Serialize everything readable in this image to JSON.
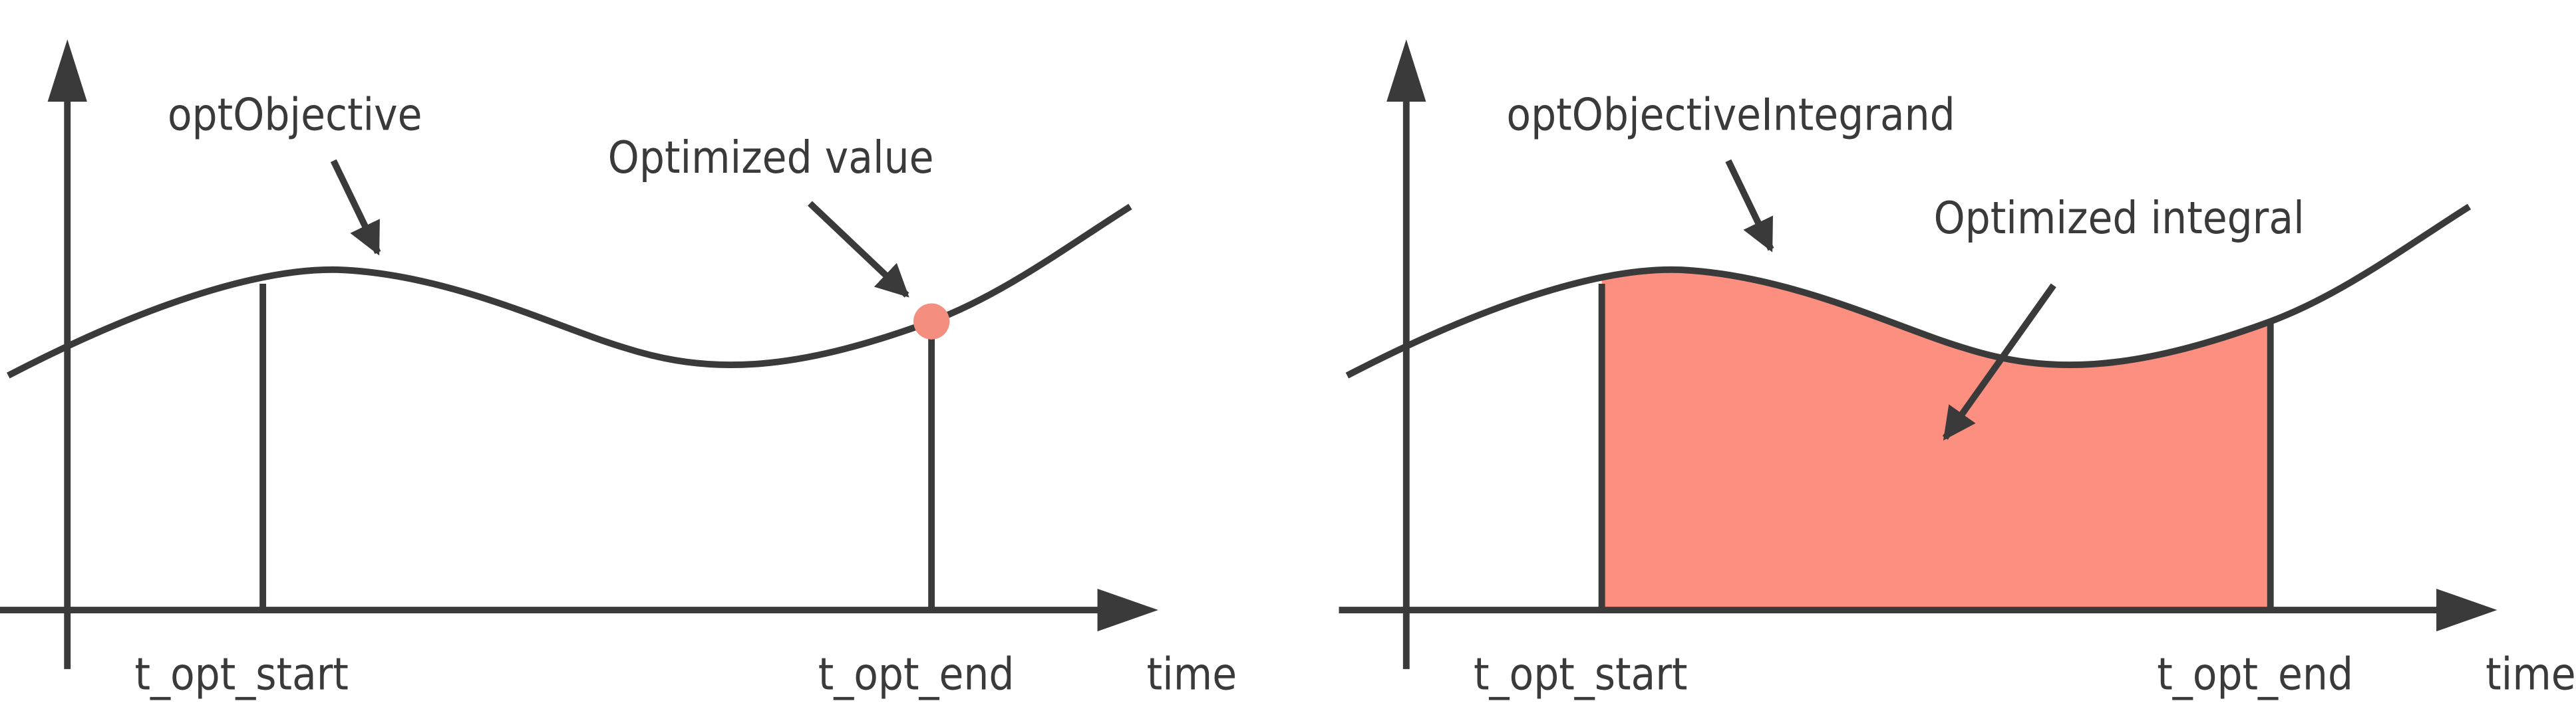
{
  "panels": [
    {
      "curve_label": "optObjective",
      "annotation": "Optimized value",
      "start_label": "t_opt_start",
      "end_label": "t_opt_end",
      "axis_label": "time"
    },
    {
      "curve_label": "optObjectiveIntegrand",
      "annotation": "Optimized integral",
      "start_label": "t_opt_start",
      "end_label": "t_opt_end",
      "axis_label": "time"
    }
  ]
}
